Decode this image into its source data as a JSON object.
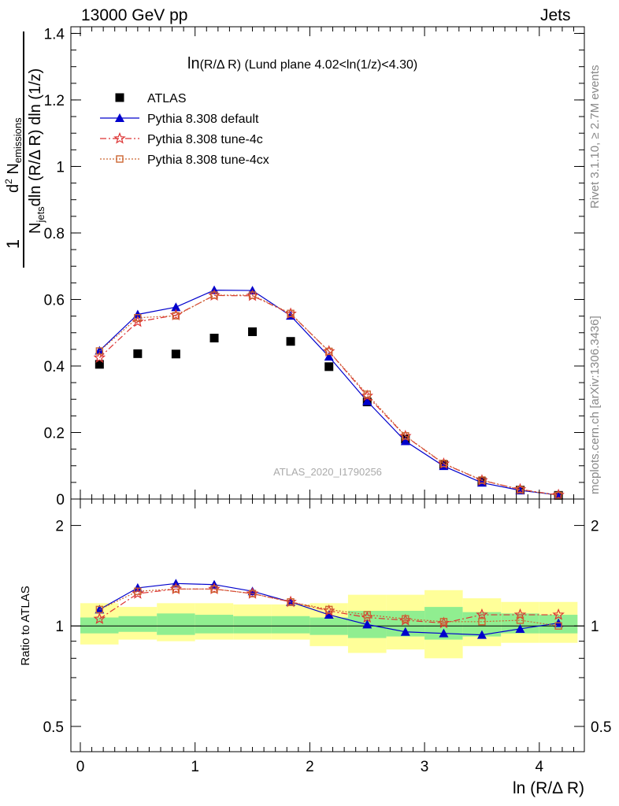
{
  "header": {
    "left": "13000 GeV pp",
    "right": "Jets"
  },
  "side_labels": {
    "rivet": "Rivet 3.1.10, ≥ 2.7M events",
    "mcplots": "mcplots.cern.ch [arXiv:1306.3436]"
  },
  "chart_data": [
    {
      "type": "scatter",
      "panel": "main",
      "title_main": "ln",
      "title_rest": "(R/Δ R)  (Lund plane 4.02<ln(1/z)<4.30)",
      "watermark": "ATLAS_2020_I1790256",
      "ylabel": {
        "one": "1",
        "n_jets": "N",
        "n_jets_sub": "jets",
        "den_rest": "dln (R/Δ R) dln (1/z)",
        "num_d": "d",
        "num_sup": "2",
        "num_n": " N",
        "num_sub": "emissions"
      },
      "xlim": [
        -0.1,
        4.4
      ],
      "ylim": [
        0,
        1.42
      ],
      "yticks": [
        0,
        0.2,
        0.4,
        0.6,
        0.8,
        1,
        1.2,
        1.4
      ],
      "ytick_labels": [
        "0",
        "0.2",
        "0.4",
        "0.6",
        "0.8",
        "1",
        "1.2",
        "1.4"
      ],
      "x": [
        0.167,
        0.5,
        0.833,
        1.167,
        1.5,
        1.833,
        2.167,
        2.5,
        2.833,
        3.167,
        3.5,
        3.833,
        4.167
      ],
      "series": [
        {
          "name": "ATLAS",
          "color": "#000000",
          "marker": "square",
          "line": "none",
          "values": [
            0.405,
            0.437,
            0.436,
            0.484,
            0.503,
            0.474,
            0.398,
            0.292,
            0.18,
            0.103,
            0.052,
            0.027,
            0.011
          ]
        },
        {
          "name": "Pythia 8.308 default",
          "color": "#0000cc",
          "marker": "triangle",
          "line": "solid",
          "values": [
            0.446,
            0.555,
            0.577,
            0.628,
            0.627,
            0.551,
            0.428,
            0.294,
            0.174,
            0.099,
            0.049,
            0.026,
            0.012
          ]
        },
        {
          "name": "Pythia 8.308 tune-4c",
          "color": "#dd3333",
          "marker": "star",
          "line": "dashdot",
          "values": [
            0.425,
            0.533,
            0.553,
            0.612,
            0.611,
            0.557,
            0.444,
            0.31,
            0.189,
            0.106,
            0.056,
            0.029,
            0.012
          ]
        },
        {
          "name": "Pythia 8.308 tune-4cx",
          "color": "#cc6633",
          "marker": "open-square",
          "line": "dotted",
          "values": [
            0.445,
            0.545,
            0.551,
            0.613,
            0.613,
            0.558,
            0.444,
            0.315,
            0.19,
            0.107,
            0.057,
            0.028,
            0.011
          ]
        }
      ],
      "legend_placement": "top-left"
    },
    {
      "type": "scatter",
      "panel": "ratio",
      "ylabel": "Ratio to ATLAS",
      "xlabel": "ln (R/Δ R)",
      "xticks": [
        0,
        1,
        2,
        3,
        4
      ],
      "xtick_labels": [
        "0",
        "1",
        "2",
        "3",
        "4"
      ],
      "ylim": [
        0.42,
        2.4
      ],
      "log_y": true,
      "yticks": [
        0.5,
        1,
        2
      ],
      "ytick_labels": [
        "0.5",
        "1",
        "2"
      ],
      "x": [
        0.167,
        0.5,
        0.833,
        1.167,
        1.5,
        1.833,
        2.167,
        2.5,
        2.833,
        3.167,
        3.5,
        3.833,
        4.167
      ],
      "uncertainty_bins": {
        "edges": [
          0,
          0.333,
          0.667,
          1,
          1.333,
          1.667,
          2,
          2.333,
          2.667,
          3,
          3.333,
          3.667,
          4,
          4.333
        ],
        "stat_band": {
          "color": "#90ee90",
          "lo": [
            0.95,
            0.96,
            0.94,
            0.95,
            0.95,
            0.95,
            0.94,
            0.92,
            0.93,
            0.91,
            0.93,
            0.95,
            0.95
          ],
          "hi": [
            1.06,
            1.07,
            1.09,
            1.08,
            1.07,
            1.07,
            1.06,
            1.11,
            1.11,
            1.14,
            1.1,
            1.09,
            1.08
          ]
        },
        "syst_band": {
          "color": "#ffff99",
          "lo": [
            0.88,
            0.91,
            0.9,
            0.91,
            0.91,
            0.91,
            0.87,
            0.83,
            0.85,
            0.8,
            0.87,
            0.89,
            0.89
          ],
          "hi": [
            1.17,
            1.14,
            1.17,
            1.17,
            1.16,
            1.16,
            1.17,
            1.24,
            1.24,
            1.28,
            1.21,
            1.18,
            1.18
          ]
        }
      },
      "series": [
        {
          "name": "Pythia 8.308 default",
          "color": "#0000cc",
          "marker": "triangle",
          "line": "solid",
          "values": [
            1.12,
            1.3,
            1.34,
            1.33,
            1.27,
            1.18,
            1.08,
            1.01,
            0.96,
            0.95,
            0.94,
            0.98,
            1.02
          ]
        },
        {
          "name": "Pythia 8.308 tune-4c",
          "color": "#dd3333",
          "marker": "star",
          "line": "dashdot",
          "values": [
            1.05,
            1.25,
            1.29,
            1.29,
            1.25,
            1.18,
            1.11,
            1.06,
            1.04,
            1.02,
            1.08,
            1.08,
            1.08
          ]
        },
        {
          "name": "Pythia 8.308 tune-4cx",
          "color": "#cc6633",
          "marker": "open-square",
          "line": "dotted",
          "values": [
            1.12,
            1.27,
            1.29,
            1.29,
            1.25,
            1.18,
            1.12,
            1.08,
            1.05,
            1.03,
            1.03,
            1.04,
            1.0
          ]
        }
      ]
    }
  ]
}
